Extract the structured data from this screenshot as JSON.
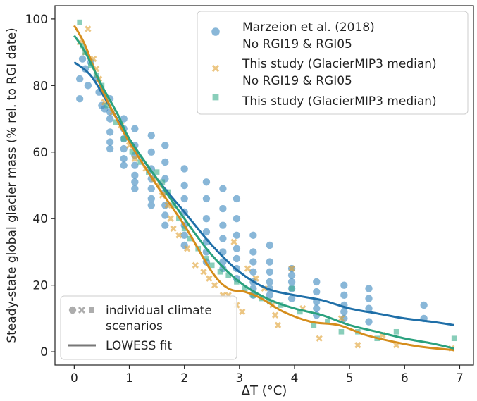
{
  "chart_data": {
    "type": "scatter",
    "title": "",
    "xlabel": "ΔT (°C)",
    "ylabel": "Steady-state global glacier mass (% rel. to RGI date)",
    "xlim": [
      -0.35,
      7.25
    ],
    "ylim": [
      -4,
      104
    ],
    "xticks": [
      "0",
      "1",
      "2",
      "3",
      "4",
      "5",
      "6",
      "7"
    ],
    "yticks": [
      "0",
      "20",
      "40",
      "60",
      "80",
      "100"
    ],
    "grid": false,
    "legend_placement": "top-right",
    "legend_scenario_placement": "bottom-left",
    "series": [
      {
        "name": "Marzeion et al. (2018)\nNo RGI19 & RGI05",
        "marker": "circle",
        "color": "#3a87be",
        "points": [
          [
            0.1,
            76
          ],
          [
            0.1,
            82
          ],
          [
            0.15,
            88
          ],
          [
            0.2,
            85
          ],
          [
            0.25,
            80
          ],
          [
            0.3,
            87
          ],
          [
            0.4,
            82
          ],
          [
            0.45,
            78
          ],
          [
            0.5,
            74
          ],
          [
            0.55,
            73
          ],
          [
            0.65,
            76
          ],
          [
            0.65,
            72
          ],
          [
            0.65,
            70
          ],
          [
            0.65,
            66
          ],
          [
            0.65,
            63
          ],
          [
            0.65,
            61
          ],
          [
            0.9,
            70
          ],
          [
            0.9,
            67
          ],
          [
            0.9,
            64
          ],
          [
            0.9,
            61
          ],
          [
            0.9,
            58
          ],
          [
            0.9,
            56
          ],
          [
            1.1,
            67
          ],
          [
            1.1,
            62
          ],
          [
            1.1,
            59
          ],
          [
            1.1,
            56
          ],
          [
            1.1,
            53
          ],
          [
            1.1,
            51
          ],
          [
            1.1,
            49
          ],
          [
            1.4,
            65
          ],
          [
            1.4,
            60
          ],
          [
            1.4,
            55
          ],
          [
            1.4,
            52
          ],
          [
            1.4,
            49
          ],
          [
            1.4,
            46
          ],
          [
            1.4,
            44
          ],
          [
            1.65,
            62
          ],
          [
            1.65,
            57
          ],
          [
            1.65,
            52
          ],
          [
            1.65,
            48
          ],
          [
            1.65,
            44
          ],
          [
            1.65,
            41
          ],
          [
            1.65,
            38
          ],
          [
            2.0,
            55
          ],
          [
            2.0,
            50
          ],
          [
            2.0,
            46
          ],
          [
            2.0,
            42
          ],
          [
            2.0,
            38
          ],
          [
            2.0,
            35
          ],
          [
            2.0,
            32
          ],
          [
            2.4,
            51
          ],
          [
            2.4,
            46
          ],
          [
            2.4,
            40
          ],
          [
            2.4,
            36
          ],
          [
            2.4,
            33
          ],
          [
            2.4,
            30
          ],
          [
            2.4,
            27
          ],
          [
            2.7,
            49
          ],
          [
            2.7,
            43
          ],
          [
            2.7,
            38
          ],
          [
            2.7,
            34
          ],
          [
            2.7,
            30
          ],
          [
            2.7,
            27
          ],
          [
            2.7,
            25
          ],
          [
            2.95,
            46
          ],
          [
            2.95,
            40
          ],
          [
            2.95,
            35
          ],
          [
            2.95,
            31
          ],
          [
            2.95,
            28
          ],
          [
            2.95,
            25
          ],
          [
            2.95,
            22
          ],
          [
            3.25,
            35
          ],
          [
            3.25,
            30
          ],
          [
            3.25,
            27
          ],
          [
            3.25,
            24
          ],
          [
            3.25,
            21
          ],
          [
            3.25,
            19
          ],
          [
            3.25,
            17
          ],
          [
            3.55,
            32
          ],
          [
            3.55,
            27
          ],
          [
            3.55,
            24
          ],
          [
            3.55,
            21
          ],
          [
            3.55,
            19
          ],
          [
            3.55,
            17
          ],
          [
            3.95,
            25
          ],
          [
            3.95,
            23
          ],
          [
            3.95,
            21
          ],
          [
            3.95,
            19
          ],
          [
            3.95,
            16
          ],
          [
            4.4,
            21
          ],
          [
            4.4,
            18
          ],
          [
            4.4,
            15
          ],
          [
            4.4,
            13
          ],
          [
            4.4,
            11
          ],
          [
            4.9,
            20
          ],
          [
            4.9,
            17
          ],
          [
            4.9,
            14
          ],
          [
            4.9,
            12
          ],
          [
            4.9,
            10
          ],
          [
            5.35,
            19
          ],
          [
            5.35,
            16
          ],
          [
            5.35,
            13
          ],
          [
            5.35,
            9
          ],
          [
            6.35,
            14
          ],
          [
            6.35,
            10
          ]
        ]
      },
      {
        "name": "This study (GlacierMIP3 median)\nNo RGI19 & RGI05",
        "marker": "x",
        "color": "#e0a030",
        "points": [
          [
            0.1,
            93
          ],
          [
            0.2,
            90
          ],
          [
            0.25,
            97
          ],
          [
            0.35,
            88
          ],
          [
            0.4,
            85
          ],
          [
            0.45,
            82
          ],
          [
            0.55,
            75
          ],
          [
            0.7,
            72
          ],
          [
            0.85,
            68
          ],
          [
            1.0,
            62
          ],
          [
            1.1,
            58
          ],
          [
            1.3,
            55
          ],
          [
            1.45,
            52
          ],
          [
            1.55,
            50
          ],
          [
            1.6,
            47
          ],
          [
            1.7,
            44
          ],
          [
            1.75,
            40
          ],
          [
            1.8,
            37
          ],
          [
            1.9,
            35
          ],
          [
            2.05,
            31
          ],
          [
            2.2,
            26
          ],
          [
            2.35,
            24
          ],
          [
            2.45,
            22
          ],
          [
            2.55,
            20
          ],
          [
            2.7,
            17
          ],
          [
            2.8,
            17
          ],
          [
            2.95,
            14
          ],
          [
            3.05,
            12
          ],
          [
            2.9,
            33
          ],
          [
            3.15,
            25
          ],
          [
            3.3,
            22
          ],
          [
            3.45,
            19
          ],
          [
            3.6,
            14
          ],
          [
            3.65,
            11
          ],
          [
            3.7,
            8
          ],
          [
            3.95,
            25
          ],
          [
            4.15,
            13
          ],
          [
            4.45,
            4
          ],
          [
            4.85,
            10
          ],
          [
            5.15,
            2
          ],
          [
            5.6,
            5
          ],
          [
            5.85,
            2
          ],
          [
            6.85,
            1
          ]
        ]
      },
      {
        "name": "This study (GlacierMIP3 median)",
        "marker": "square",
        "color": "#3aae8c",
        "points": [
          [
            0.1,
            99
          ],
          [
            0.15,
            92
          ],
          [
            0.2,
            90
          ],
          [
            0.3,
            86
          ],
          [
            0.4,
            83
          ],
          [
            0.5,
            80
          ],
          [
            0.6,
            74
          ],
          [
            0.75,
            69
          ],
          [
            0.9,
            64
          ],
          [
            1.05,
            60
          ],
          [
            1.2,
            57
          ],
          [
            1.35,
            54
          ],
          [
            1.5,
            54
          ],
          [
            1.6,
            51
          ],
          [
            1.7,
            48
          ],
          [
            1.8,
            44
          ],
          [
            1.9,
            40
          ],
          [
            2.0,
            37
          ],
          [
            2.1,
            34
          ],
          [
            2.25,
            31
          ],
          [
            2.4,
            28
          ],
          [
            2.5,
            26
          ],
          [
            2.65,
            24
          ],
          [
            2.8,
            23
          ],
          [
            2.95,
            21
          ],
          [
            3.1,
            19
          ],
          [
            3.25,
            17
          ],
          [
            3.4,
            16
          ],
          [
            3.55,
            15
          ],
          [
            3.75,
            14
          ],
          [
            3.95,
            19
          ],
          [
            4.1,
            12
          ],
          [
            4.35,
            8
          ],
          [
            4.6,
            9
          ],
          [
            4.85,
            6
          ],
          [
            5.15,
            6
          ],
          [
            5.5,
            4
          ],
          [
            5.85,
            6
          ],
          [
            6.9,
            4
          ]
        ]
      }
    ],
    "fits": [
      {
        "name": "Marzeion LOWESS",
        "color": "#1f6fa8",
        "points": [
          [
            0,
            87
          ],
          [
            0.3,
            83
          ],
          [
            0.6,
            75
          ],
          [
            1.0,
            64
          ],
          [
            1.5,
            52
          ],
          [
            2.0,
            42
          ],
          [
            2.5,
            32
          ],
          [
            3.0,
            24
          ],
          [
            3.5,
            19
          ],
          [
            4.0,
            17
          ],
          [
            4.5,
            15.5
          ],
          [
            5.0,
            13
          ],
          [
            5.5,
            11.5
          ],
          [
            6.0,
            10
          ],
          [
            6.5,
            9
          ],
          [
            6.9,
            8
          ]
        ]
      },
      {
        "name": "This study No RGI19 LOWESS",
        "color": "#d58d1c",
        "points": [
          [
            0,
            98
          ],
          [
            0.2,
            92
          ],
          [
            0.5,
            79
          ],
          [
            0.8,
            69
          ],
          [
            1.0,
            63
          ],
          [
            1.5,
            50
          ],
          [
            2.0,
            38
          ],
          [
            2.5,
            24
          ],
          [
            2.8,
            19
          ],
          [
            3.1,
            18
          ],
          [
            3.4,
            16
          ],
          [
            3.8,
            12
          ],
          [
            4.3,
            9
          ],
          [
            4.8,
            8
          ],
          [
            5.3,
            5
          ],
          [
            5.8,
            3
          ],
          [
            6.3,
            1.5
          ],
          [
            6.9,
            0.5
          ]
        ]
      },
      {
        "name": "This study LOWESS",
        "color": "#2aa17e",
        "points": [
          [
            0,
            95
          ],
          [
            0.2,
            90
          ],
          [
            0.5,
            80
          ],
          [
            0.8,
            71
          ],
          [
            1.0,
            64
          ],
          [
            1.5,
            52
          ],
          [
            2.0,
            40
          ],
          [
            2.5,
            29
          ],
          [
            3.0,
            21
          ],
          [
            3.5,
            16
          ],
          [
            4.0,
            13
          ],
          [
            4.5,
            11
          ],
          [
            5.0,
            8
          ],
          [
            5.5,
            6
          ],
          [
            6.0,
            4
          ],
          [
            6.5,
            2.5
          ],
          [
            6.9,
            1
          ]
        ]
      }
    ],
    "scenario_legend": {
      "markers_label": "individual climate\nscenarios",
      "line_label": "LOWESS fit"
    }
  }
}
